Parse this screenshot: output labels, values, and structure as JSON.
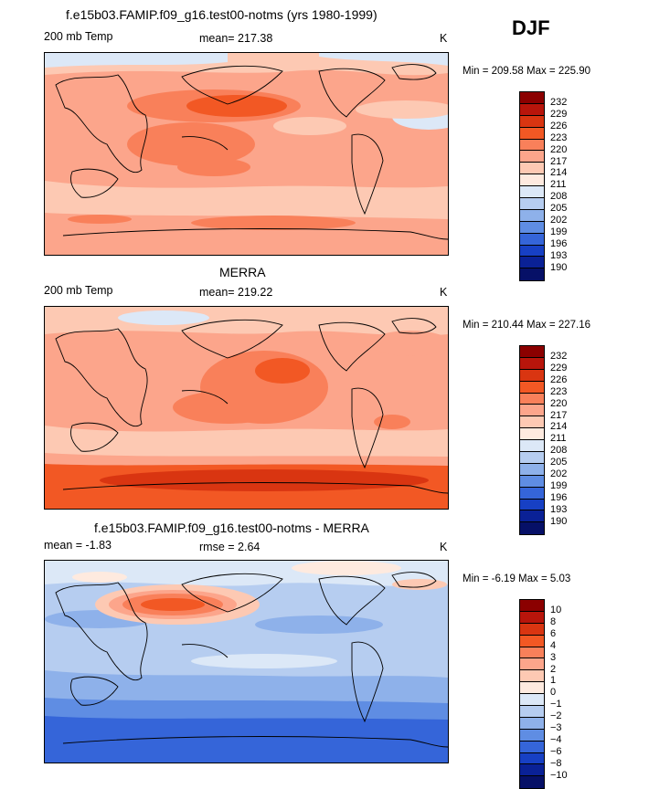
{
  "season": "DJF",
  "panels": [
    {
      "title": "f.e15b03.FAMIP.f09_g16.test00-notms (yrs 1980-1999)",
      "left_label": "200 mb Temp",
      "center_label": "mean= 217.38",
      "units": "K",
      "minmax": "Min = 209.58 Max = 225.90",
      "colorbar": {
        "labels": [
          "232",
          "229",
          "226",
          "223",
          "220",
          "217",
          "214",
          "211",
          "208",
          "205",
          "202",
          "199",
          "196",
          "193",
          "190"
        ],
        "colors": [
          "#8b0000",
          "#b8150b",
          "#d93511",
          "#f25824",
          "#f9805a",
          "#fca58b",
          "#fdc9b3",
          "#feeadf",
          "#dce8f7",
          "#b6cdf0",
          "#8eb1ea",
          "#5f8de3",
          "#3565d9",
          "#1740c4",
          "#0a2196",
          "#061067"
        ]
      }
    },
    {
      "title": "MERRA",
      "left_label": "200 mb Temp",
      "center_label": "mean= 219.22",
      "units": "K",
      "minmax": "Min = 210.44 Max = 227.16",
      "colorbar": {
        "labels": [
          "232",
          "229",
          "226",
          "223",
          "220",
          "217",
          "214",
          "211",
          "208",
          "205",
          "202",
          "199",
          "196",
          "193",
          "190"
        ],
        "colors": [
          "#8b0000",
          "#b8150b",
          "#d93511",
          "#f25824",
          "#f9805a",
          "#fca58b",
          "#fdc9b3",
          "#feeadf",
          "#dce8f7",
          "#b6cdf0",
          "#8eb1ea",
          "#5f8de3",
          "#3565d9",
          "#1740c4",
          "#0a2196",
          "#061067"
        ]
      }
    },
    {
      "title": "f.e15b03.FAMIP.f09_g16.test00-notms - MERRA",
      "left_label": "mean =   -1.83",
      "center_label": "rmse =    2.64",
      "units": "K",
      "minmax": "Min =   -6.19 Max =    5.03",
      "colorbar": {
        "labels": [
          "10",
          "8",
          "6",
          "4",
          "3",
          "2",
          "1",
          "0",
          "−1",
          "−2",
          "−3",
          "−4",
          "−6",
          "−8",
          "−10"
        ],
        "colors": [
          "#8b0000",
          "#b8150b",
          "#d93511",
          "#f25824",
          "#f9805a",
          "#fca58b",
          "#fdc9b3",
          "#feeadf",
          "#dce8f7",
          "#b6cdf0",
          "#8eb1ea",
          "#5f8de3",
          "#3565d9",
          "#1740c4",
          "#0a2196",
          "#061067"
        ]
      }
    }
  ]
}
